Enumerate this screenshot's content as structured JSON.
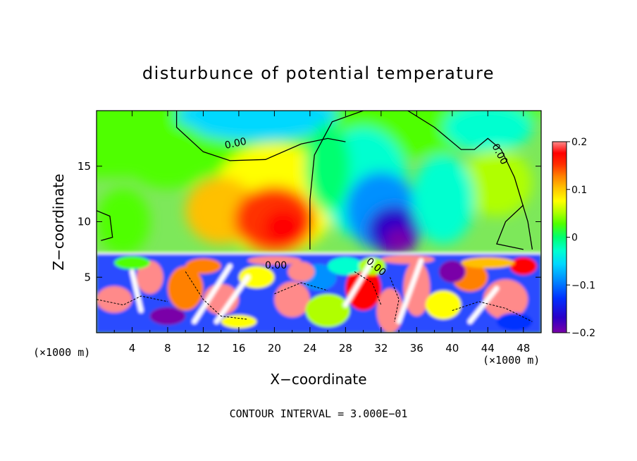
{
  "chart_data": {
    "type": "heatmap",
    "title": "disturbunce of potential temperature",
    "xlabel": "X−coordinate",
    "ylabel": "Z−coordinate",
    "x_unit_label": "(×1000 m)",
    "x_unit_label_right": "(×1000 m)",
    "xlim": [
      0,
      50
    ],
    "ylim": [
      0,
      20
    ],
    "x_ticks": [
      4,
      8,
      12,
      16,
      20,
      24,
      28,
      32,
      36,
      40,
      44,
      48
    ],
    "x_tick_labels": [
      "4",
      "8",
      "12",
      "16",
      "20",
      "24",
      "28",
      "32",
      "36",
      "40",
      "44",
      "48"
    ],
    "y_ticks": [
      5,
      10,
      15
    ],
    "y_tick_labels": [
      "5",
      "10",
      "15"
    ],
    "colorbar": {
      "range": [
        -0.2,
        0.2
      ],
      "ticks": [
        0.2,
        0.1,
        0,
        -0.1,
        -0.2
      ],
      "tick_labels": [
        "0.2",
        "0.1",
        "0",
        "−0.1",
        "−0.2"
      ],
      "colors": [
        "#7a00a8",
        "#2a00c8",
        "#0030ff",
        "#0090ff",
        "#00d8ff",
        "#00ffd0",
        "#00ff70",
        "#50ff00",
        "#b0ff00",
        "#ffff00",
        "#ffc000",
        "#ff8000",
        "#ff3000",
        "#ff0000",
        "#ff8a8a"
      ]
    },
    "contour_labels": [
      "0.00",
      "0.00",
      "0.00",
      "0.00"
    ],
    "contour_interval_text": "CONTOUR INTERVAL = 3.000E−01",
    "features": [
      {
        "name": "warm anomaly",
        "x": 20,
        "z": 10,
        "value": 0.15
      },
      {
        "name": "warm lobe",
        "x": 15,
        "z": 11,
        "value": 0.1
      },
      {
        "name": "cold anomaly",
        "x": 33,
        "z": 9.5,
        "value": -0.2
      },
      {
        "name": "cold lobe",
        "x": 30,
        "z": 13,
        "value": -0.08
      },
      {
        "name": "upper cold",
        "x": 20,
        "z": 19,
        "value": -0.06
      },
      {
        "name": "upper cold right",
        "x": 44,
        "z": 18,
        "value": -0.05
      },
      {
        "name": "warm right",
        "x": 45,
        "z": 14,
        "value": 0.04
      }
    ],
    "layer_top_z": 7.2
  }
}
